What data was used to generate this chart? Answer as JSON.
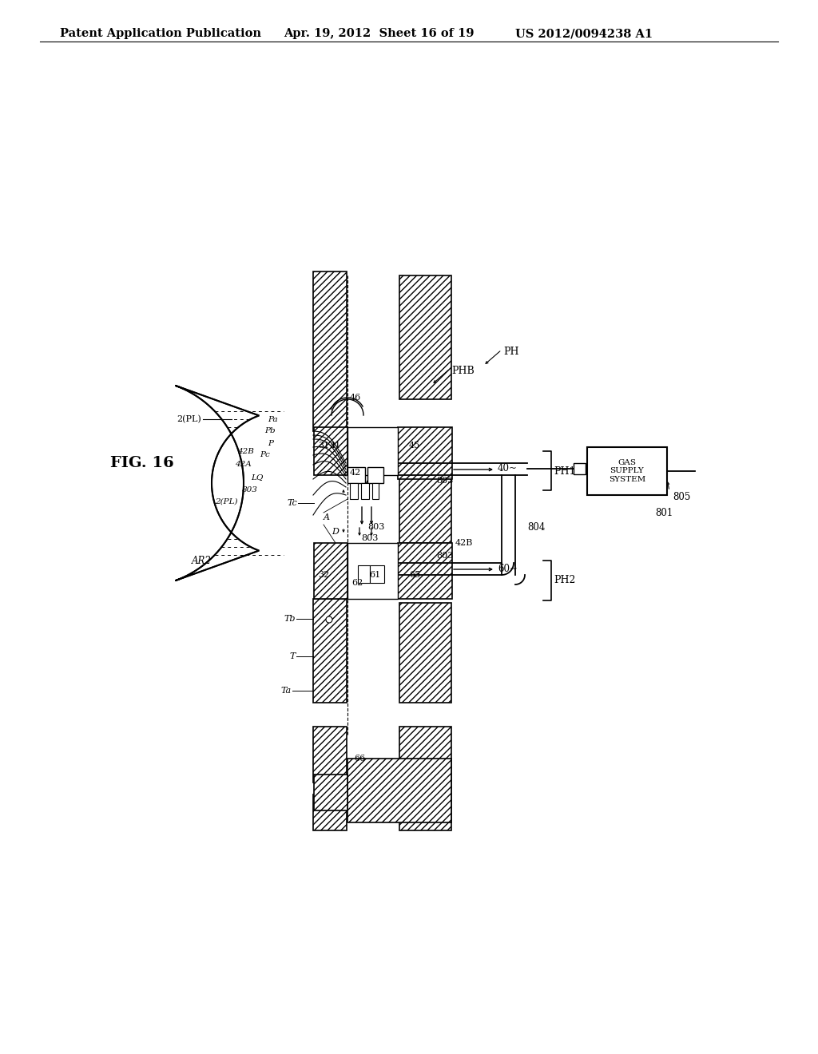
{
  "title_left": "Patent Application Publication",
  "title_mid": "Apr. 19, 2012  Sheet 16 of 19",
  "title_right": "US 2012/0094238 A1",
  "fig_label": "FIG. 16",
  "background": "#ffffff",
  "text_color": "#000000"
}
